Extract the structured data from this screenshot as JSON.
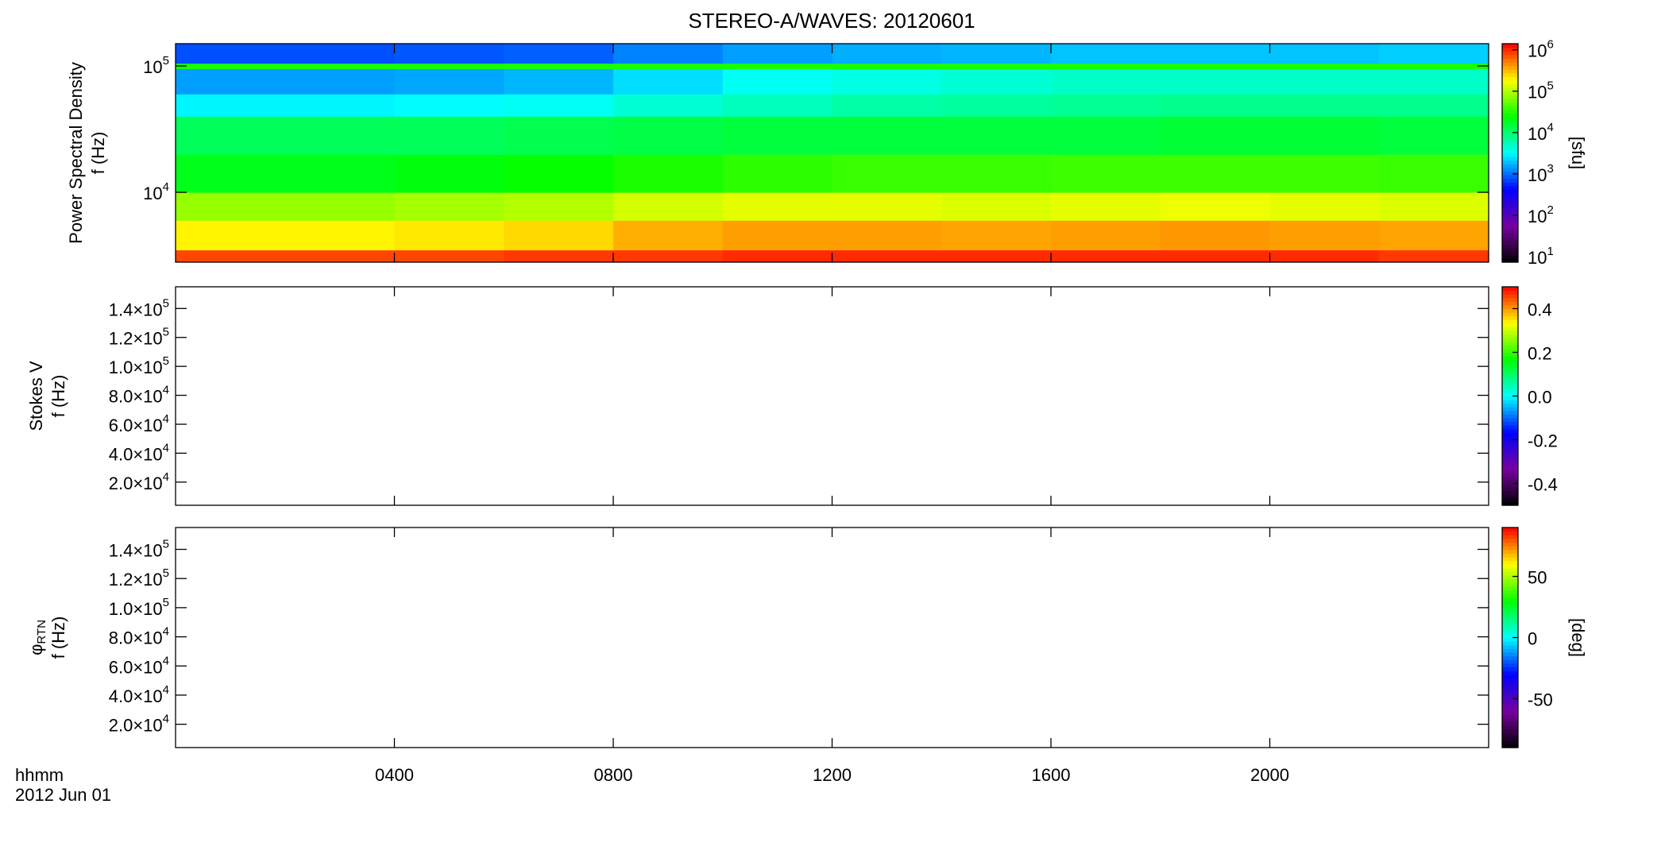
{
  "title": "STEREO-A/WAVES: 20120601",
  "x_label": [
    "hhmm",
    "2012 Jun 01"
  ],
  "xlim": [
    0,
    24
  ],
  "xticks": [
    {
      "value": 4,
      "label": "0400"
    },
    {
      "value": 8,
      "label": "0800"
    },
    {
      "value": 12,
      "label": "1200"
    },
    {
      "value": 16,
      "label": "1600"
    },
    {
      "value": 20,
      "label": "2000"
    }
  ],
  "colormap": [
    "#000000",
    "#7800a0",
    "#0000ff",
    "#00ffff",
    "#00ff00",
    "#ffff00",
    "#ff0000"
  ],
  "chart_data": [
    {
      "type": "heatmap",
      "ylabel": [
        "Power Spectral Density",
        "f (Hz)"
      ],
      "ylog": true,
      "ylim": [
        2800,
        150000
      ],
      "yticks": [
        {
          "value": 10000,
          "label": "10",
          "sup": "4"
        },
        {
          "value": 100000,
          "label": "10",
          "sup": "5"
        }
      ],
      "x_bins": [
        0,
        2,
        4,
        6,
        8,
        10,
        12,
        14,
        16,
        18,
        20,
        22,
        24
      ],
      "y_bins": [
        2800,
        3500,
        6000,
        10000,
        20000,
        40000,
        60000,
        95000,
        105000,
        150000
      ],
      "z": [
        [
          800000,
          800000,
          800000,
          900000,
          900000,
          1000000,
          1000000,
          1000000,
          1000000,
          1000000,
          1000000,
          900000
        ],
        [
          200000,
          200000,
          220000,
          250000,
          350000,
          400000,
          400000,
          380000,
          400000,
          420000,
          400000,
          380000
        ],
        [
          80000,
          80000,
          90000,
          100000,
          130000,
          150000,
          150000,
          140000,
          150000,
          160000,
          150000,
          140000
        ],
        [
          20000,
          20000,
          22000,
          25000,
          30000,
          35000,
          38000,
          38000,
          40000,
          40000,
          40000,
          38000
        ],
        [
          12000,
          12000,
          12000,
          13000,
          14000,
          15000,
          15000,
          15000,
          15000,
          16000,
          16000,
          15000
        ],
        [
          3000,
          3000,
          3200,
          3500,
          4500,
          5500,
          6500,
          7000,
          7500,
          8000,
          8000,
          8000
        ],
        [
          1500,
          1500,
          1600,
          1800,
          2500,
          3500,
          4000,
          4500,
          5000,
          5000,
          5000,
          5000
        ],
        [
          30000,
          30000,
          30000,
          30000,
          30000,
          30000,
          30000,
          30000,
          30000,
          30000,
          30000,
          30000
        ],
        [
          800,
          800,
          850,
          900,
          1200,
          1500,
          1700,
          1800,
          2000,
          2000,
          2000,
          2200
        ]
      ],
      "zlog": true,
      "zlim": [
        7.4,
        1400000
      ],
      "zticks": [
        {
          "value": 10,
          "label": "10",
          "sup": "1"
        },
        {
          "value": 100,
          "label": "10",
          "sup": "2"
        },
        {
          "value": 1000,
          "label": "10",
          "sup": "3"
        },
        {
          "value": 10000,
          "label": "10",
          "sup": "4"
        },
        {
          "value": 100000,
          "label": "10",
          "sup": "5"
        },
        {
          "value": 1000000,
          "label": "10",
          "sup": "6"
        }
      ],
      "zlabel": "[sfu]"
    },
    {
      "type": "heatmap",
      "ylabel": [
        "Stokes V",
        "f (Hz)"
      ],
      "ylim": [
        4000,
        155000
      ],
      "yticks": [
        {
          "value": 20000,
          "label": "2.0×10",
          "sup": "4"
        },
        {
          "value": 40000,
          "label": "4.0×10",
          "sup": "4"
        },
        {
          "value": 60000,
          "label": "6.0×10",
          "sup": "4"
        },
        {
          "value": 80000,
          "label": "8.0×10",
          "sup": "4"
        },
        {
          "value": 100000,
          "label": "1.0×10",
          "sup": "5"
        },
        {
          "value": 120000,
          "label": "1.2×10",
          "sup": "5"
        },
        {
          "value": 140000,
          "label": "1.4×10",
          "sup": "5"
        }
      ],
      "zlim": [
        -0.5,
        0.5
      ],
      "zticks": [
        -0.4,
        -0.2,
        {
          "value": 0,
          "label": "0.0"
        },
        0.2,
        0.4
      ]
    },
    {
      "type": "heatmap",
      "ylabel": [
        {
          "label": "φ",
          "sub": "RTN"
        },
        "f (Hz)"
      ],
      "ylim": [
        4000,
        155000
      ],
      "yticks": [
        {
          "value": 20000,
          "label": "2.0×10",
          "sup": "4"
        },
        {
          "value": 40000,
          "label": "4.0×10",
          "sup": "4"
        },
        {
          "value": 60000,
          "label": "6.0×10",
          "sup": "4"
        },
        {
          "value": 80000,
          "label": "8.0×10",
          "sup": "4"
        },
        {
          "value": 100000,
          "label": "1.0×10",
          "sup": "5"
        },
        {
          "value": 120000,
          "label": "1.2×10",
          "sup": "5"
        },
        {
          "value": 140000,
          "label": "1.4×10",
          "sup": "5"
        }
      ],
      "zlim": [
        -90,
        90
      ],
      "zticks": [
        -50,
        0,
        50
      ],
      "zlabel": "[deg]"
    }
  ]
}
